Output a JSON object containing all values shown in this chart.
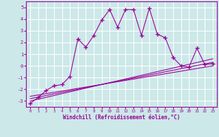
{
  "xlabel": "Windchill (Refroidissement éolien,°C)",
  "bg_color": "#cce8e8",
  "grid_color": "#ffffff",
  "line_color": "#990099",
  "xlim": [
    -0.5,
    23.5
  ],
  "ylim": [
    -3.5,
    5.5
  ],
  "xticks": [
    0,
    1,
    2,
    3,
    4,
    5,
    6,
    7,
    8,
    9,
    10,
    11,
    12,
    13,
    14,
    15,
    16,
    17,
    18,
    19,
    20,
    21,
    22,
    23
  ],
  "yticks": [
    -3,
    -2,
    -1,
    0,
    1,
    2,
    3,
    4,
    5
  ],
  "scatter_x": [
    0,
    1,
    2,
    3,
    4,
    5,
    6,
    7,
    8,
    9,
    10,
    11,
    12,
    13,
    14,
    15,
    16,
    17,
    18,
    19,
    20,
    21,
    22,
    23
  ],
  "scatter_y": [
    -3.2,
    -2.7,
    -2.1,
    -1.7,
    -1.6,
    -0.9,
    2.3,
    1.6,
    2.6,
    3.9,
    4.8,
    3.3,
    4.8,
    4.8,
    2.6,
    4.9,
    2.7,
    2.4,
    0.7,
    0.0,
    -0.1,
    1.5,
    0.1,
    0.2
  ],
  "line1_x": [
    0,
    23
  ],
  "line1_y": [
    -3.0,
    0.6
  ],
  "line2_x": [
    0,
    23
  ],
  "line2_y": [
    -2.8,
    0.3
  ],
  "line3_x": [
    0,
    23
  ],
  "line3_y": [
    -2.6,
    0.0
  ]
}
